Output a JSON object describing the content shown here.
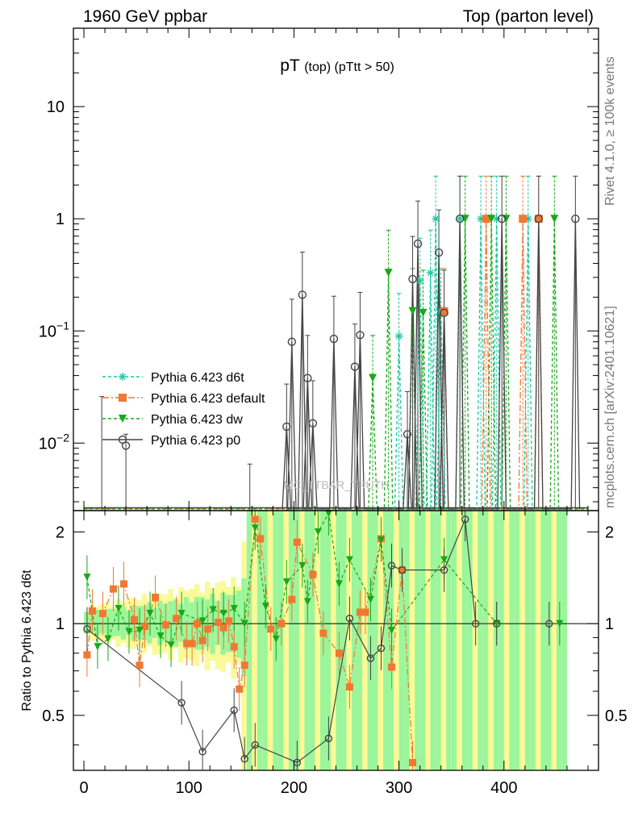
{
  "header": {
    "left": "1960 GeV ppbar",
    "right": "Top (parton level)"
  },
  "side_labels": {
    "rivet": "Rivet 4.1.0, ≥ 100k events",
    "mcplots": "mcplots.cern.ch [arXiv:2401.10621]"
  },
  "watermark": "MC_TTBAR_TRUTH",
  "chart_data": {
    "type": "scatter",
    "title_main": "pT",
    "title_sub": "(top) (pTtt > 50)",
    "xlabel": "",
    "ylabel_main": "",
    "ylabel_ratio": "Ratio to Pythia 6.423 d6t",
    "x_range": [
      -10,
      490
    ],
    "main_y_range": [
      0.0025,
      50
    ],
    "main_y_scale": "log",
    "main_y_ticks": [
      {
        "value": 0.01,
        "base": "10",
        "exp": "−2"
      },
      {
        "value": 0.1,
        "base": "10",
        "exp": "−1"
      },
      {
        "value": 1,
        "base": "1",
        "exp": ""
      },
      {
        "value": 10,
        "base": "10",
        "exp": ""
      }
    ],
    "ratio_y_range": [
      0.33,
      2.35
    ],
    "ratio_y_ticks": [
      "0.5",
      "1",
      "2"
    ],
    "x_ticks": [
      "0",
      "100",
      "200",
      "300",
      "400"
    ],
    "legend_position": "lower-left",
    "series": [
      {
        "name": "Pythia 6.423 d6t",
        "color": "#18c8a0",
        "marker": "star",
        "dash": "4,3",
        "x": [
          300,
          320,
          330,
          335,
          340,
          358,
          378,
          393,
          423
        ],
        "y": [
          0.09,
          0.28,
          0.33,
          1.0,
          0.15,
          1.0,
          1.0,
          1.0,
          1.0
        ],
        "band": "#9bf59b"
      },
      {
        "name": "Pythia 6.423 default",
        "color": "#f07832",
        "marker": "square",
        "dash": "8,3,2,3",
        "x": [
          343,
          383,
          418,
          433
        ],
        "y": [
          0.15,
          1.0,
          1.0,
          1.0
        ],
        "band": "#fafa96"
      },
      {
        "name": "Pythia 6.423 dw",
        "color": "#18a818",
        "marker": "triangle-down",
        "dash": "4,3",
        "x": [
          275,
          290,
          313,
          323,
          363,
          388,
          402,
          448
        ],
        "y": [
          0.038,
          0.33,
          0.15,
          0.145,
          1.0,
          1.0,
          1.0,
          1.0
        ]
      },
      {
        "name": "Pythia 6.423 p0",
        "color": "#444444",
        "marker": "open-circle",
        "dash": "",
        "x": [
          193,
          198,
          208,
          213,
          218,
          238,
          258,
          263,
          308,
          313,
          318,
          338,
          343,
          358,
          398,
          433,
          468
        ],
        "y": [
          0.014,
          0.08,
          0.21,
          0.038,
          0.015,
          0.085,
          0.048,
          0.092,
          0.012,
          0.29,
          0.6,
          0.5,
          0.145,
          1.0,
          1.0,
          1.0,
          1.0
        ]
      }
    ],
    "ratio_series": [
      {
        "name": "Pythia 6.423 default",
        "color": "#f07832",
        "marker": "square",
        "x": [
          3,
          8,
          18,
          28,
          38,
          48,
          53,
          58,
          68,
          78,
          88,
          98,
          103,
          108,
          113,
          118,
          128,
          133,
          138,
          143,
          148,
          153,
          163,
          168,
          178,
          188,
          198,
          203,
          218,
          228,
          243,
          253,
          263,
          268,
          283,
          293,
          303,
          313
        ],
        "y": [
          0.79,
          1.1,
          1.08,
          1.3,
          1.35,
          1.03,
          0.73,
          0.98,
          1.22,
          0.99,
          1.04,
          0.86,
          0.86,
          1.0,
          0.88,
          0.96,
          1.01,
          0.97,
          1.02,
          0.84,
          0.61,
          0.73,
          2.2,
          1.9,
          0.96,
          1.0,
          1.2,
          1.85,
          1.45,
          0.93,
          0.8,
          0.62,
          1.09,
          1.09,
          1.9,
          0.72,
          1.5,
          0.35
        ]
      },
      {
        "name": "Pythia 6.423 dw",
        "color": "#18a818",
        "marker": "triangle-down",
        "x": [
          3,
          13,
          23,
          33,
          43,
          53,
          63,
          73,
          83,
          93,
          113,
          123,
          133,
          143,
          153,
          163,
          173,
          183,
          193,
          208,
          213,
          223,
          233,
          243,
          253,
          273,
          283,
          293,
          343,
          393,
          453
        ],
        "y": [
          1.42,
          0.84,
          0.89,
          1.12,
          0.94,
          0.95,
          1.08,
          0.91,
          0.85,
          1.08,
          1.02,
          1.11,
          1.08,
          1.12,
          1.0,
          2.06,
          1.14,
          0.89,
          1.37,
          1.55,
          1.18,
          2.0,
          2.3,
          1.35,
          1.62,
          1.2,
          1.88,
          0.95,
          1.62,
          1.0,
          1.0
        ]
      },
      {
        "name": "Pythia 6.423 p0",
        "color": "#444444",
        "marker": "open-circle",
        "x": [
          3,
          93,
          113,
          143,
          153,
          163,
          203,
          233,
          253,
          273,
          283,
          293,
          303,
          343,
          363,
          373,
          393,
          443
        ],
        "y": [
          0.96,
          0.55,
          0.38,
          0.52,
          0.36,
          0.4,
          0.35,
          0.42,
          1.04,
          0.77,
          0.83,
          1.55,
          1.5,
          1.5,
          2.2,
          1.0,
          1.0,
          1.0
        ]
      }
    ]
  }
}
